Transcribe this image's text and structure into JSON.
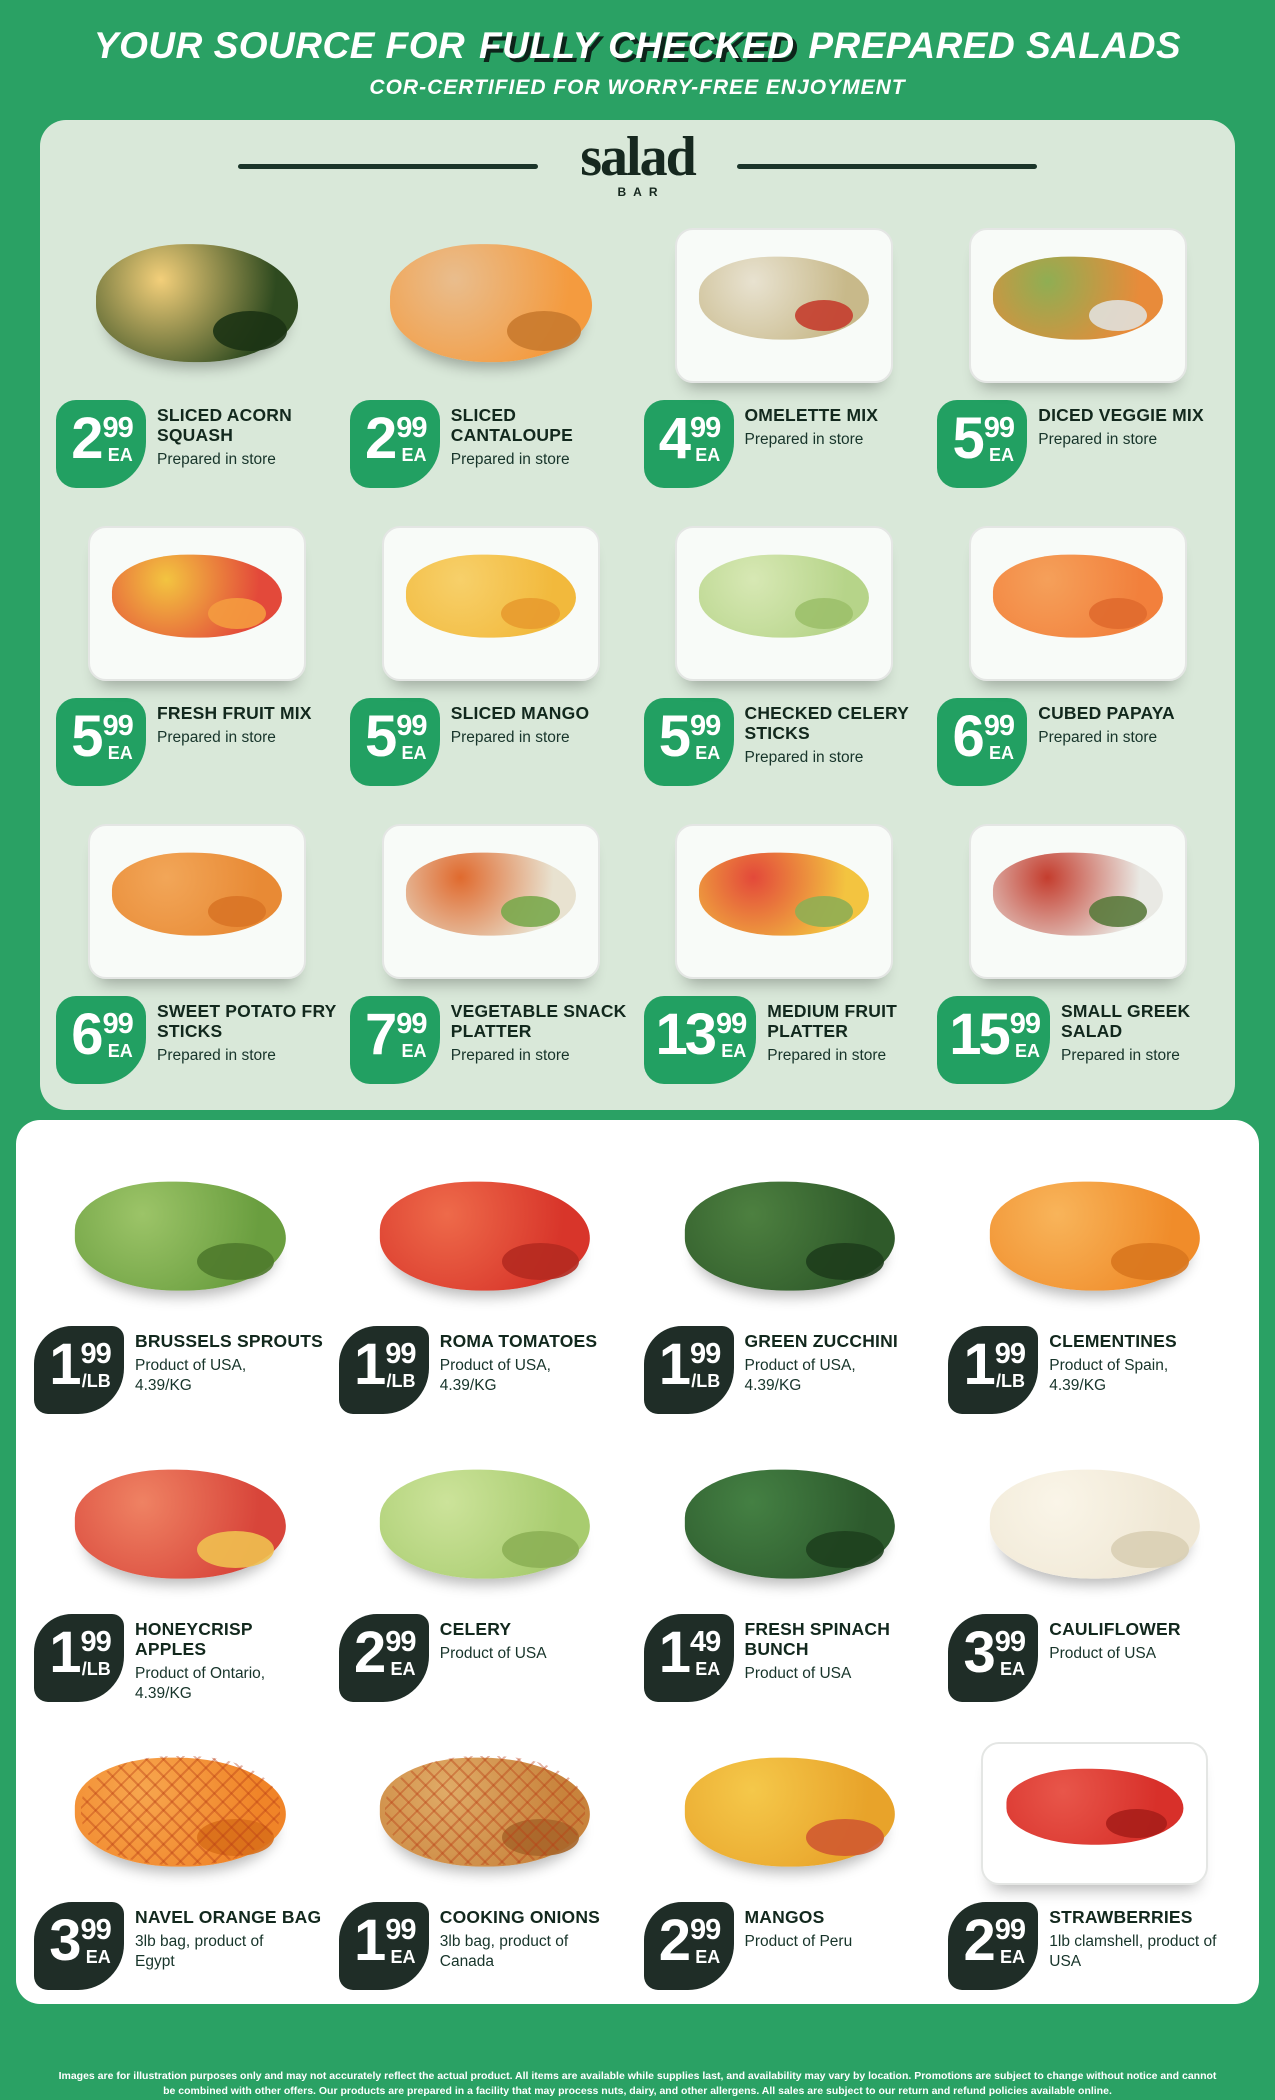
{
  "theme": {
    "background_green": "#2aa164",
    "panel_light_green": "#d9e8d9",
    "badge_green": "#22a062",
    "badge_dark": "#1f2d27",
    "text_dark": "#12281d",
    "text_white": "#ffffff"
  },
  "header": {
    "title_prefix": "YOUR SOURCE FOR ",
    "title_highlight": "FULLY CHECKED",
    "title_suffix": " PREPARED SALADS",
    "subtitle": "COR-CERTIFIED FOR WORRY-FREE ENJOYMENT"
  },
  "logo": {
    "name": "salad",
    "sub": "BAR"
  },
  "prepared_section": {
    "items": [
      {
        "name": "SLICED ACORN SQUASH",
        "sub": "Prepared in store",
        "price": {
          "dollars": "2",
          "cents": "99",
          "unit": "EA"
        },
        "container": "none",
        "colors": [
          "#2e4a1f",
          "#f3cf7a",
          "#1c3314"
        ]
      },
      {
        "name": "SLICED CANTALOUPE",
        "sub": "Prepared in store",
        "price": {
          "dollars": "2",
          "cents": "99",
          "unit": "EA"
        },
        "container": "none",
        "colors": [
          "#f49b3f",
          "#e9bd8d",
          "#c97a2e"
        ]
      },
      {
        "name": "OMELETTE MIX",
        "sub": "Prepared in store",
        "price": {
          "dollars": "4",
          "cents": "99",
          "unit": "EA"
        },
        "container": "tub",
        "colors": [
          "#c8b98a",
          "#e8e2d0",
          "#c43d2e"
        ]
      },
      {
        "name": "DICED VEGGIE MIX",
        "sub": "Prepared in store",
        "price": {
          "dollars": "5",
          "cents": "99",
          "unit": "EA"
        },
        "container": "tub",
        "colors": [
          "#e88b3a",
          "#8fae53",
          "#e0e0dc"
        ]
      },
      {
        "name": "FRESH FRUIT MIX",
        "sub": "Prepared in store",
        "price": {
          "dollars": "5",
          "cents": "99",
          "unit": "EA"
        },
        "container": "tub",
        "colors": [
          "#e3493a",
          "#f3c440",
          "#f49b3f"
        ]
      },
      {
        "name": "SLICED MANGO",
        "sub": "Prepared in store",
        "price": {
          "dollars": "5",
          "cents": "99",
          "unit": "EA"
        },
        "container": "tub",
        "colors": [
          "#f2b93c",
          "#f7d06a",
          "#e89b2f"
        ]
      },
      {
        "name": "CHECKED CELERY STICKS",
        "sub": "Prepared in store",
        "price": {
          "dollars": "5",
          "cents": "99",
          "unit": "EA"
        },
        "container": "tub",
        "colors": [
          "#b6d489",
          "#d7e8b4",
          "#9cc06a"
        ]
      },
      {
        "name": "CUBED PAPAYA",
        "sub": "Prepared in store",
        "price": {
          "dollars": "6",
          "cents": "99",
          "unit": "EA"
        },
        "container": "tub",
        "colors": [
          "#f2803c",
          "#f5a05a",
          "#e06a2e"
        ]
      },
      {
        "name": "SWEET POTATO FRY STICKS",
        "sub": "Prepared in store",
        "price": {
          "dollars": "6",
          "cents": "99",
          "unit": "EA"
        },
        "container": "tub",
        "colors": [
          "#e88a35",
          "#f2a658",
          "#d97426"
        ]
      },
      {
        "name": "VEGETABLE SNACK PLATTER",
        "sub": "Prepared in store",
        "price": {
          "dollars": "7",
          "cents": "99",
          "unit": "EA"
        },
        "container": "tub",
        "colors": [
          "#e8e2d0",
          "#e06a2e",
          "#7aa84c"
        ]
      },
      {
        "name": "MEDIUM FRUIT PLATTER",
        "sub": "Prepared in store",
        "price": {
          "dollars": "13",
          "cents": "99",
          "unit": "EA"
        },
        "container": "tub",
        "colors": [
          "#f3c440",
          "#e3493a",
          "#8fae53"
        ]
      },
      {
        "name": "SMALL GREEK SALAD",
        "sub": "Prepared in store",
        "price": {
          "dollars": "15",
          "cents": "99",
          "unit": "EA"
        },
        "container": "tub",
        "colors": [
          "#e9e9e4",
          "#c43d2e",
          "#5a7a3c"
        ]
      }
    ]
  },
  "produce_section": {
    "items": [
      {
        "name": "BRUSSELS SPROUTS",
        "sub": "Product of USA, 4.39/KG",
        "price": {
          "dollars": "1",
          "cents": "99",
          "unit": "/LB"
        },
        "container": "none",
        "colors": [
          "#6a9e3f",
          "#9cc468",
          "#4f7a2c"
        ]
      },
      {
        "name": "ROMA TOMATOES",
        "sub": "Product of USA, 4.39/KG",
        "price": {
          "dollars": "1",
          "cents": "99",
          "unit": "/LB"
        },
        "container": "none",
        "colors": [
          "#d8352a",
          "#ee6a4a",
          "#b52a20"
        ]
      },
      {
        "name": "GREEN ZUCCHINI",
        "sub": "Product of USA, 4.39/KG",
        "price": {
          "dollars": "1",
          "cents": "99",
          "unit": "/LB"
        },
        "container": "none",
        "colors": [
          "#2f5a2a",
          "#4d8040",
          "#1e3d1c"
        ]
      },
      {
        "name": "CLEMENTINES",
        "sub": "Product of Spain, 4.39/KG",
        "price": {
          "dollars": "1",
          "cents": "99",
          "unit": "/LB"
        },
        "container": "none",
        "colors": [
          "#f08c2a",
          "#f8b45a",
          "#d9771e"
        ]
      },
      {
        "name": "HONEYCRISP APPLES",
        "sub": "Product of Ontario, 4.39/KG",
        "price": {
          "dollars": "1",
          "cents": "99",
          "unit": "/LB"
        },
        "container": "none",
        "colors": [
          "#d8453a",
          "#ef8263",
          "#f0c050"
        ]
      },
      {
        "name": "CELERY",
        "sub": "Product of USA",
        "price": {
          "dollars": "2",
          "cents": "99",
          "unit": "EA"
        },
        "container": "none",
        "colors": [
          "#a8cc6f",
          "#cce39a",
          "#8cb055"
        ]
      },
      {
        "name": "FRESH SPINACH BUNCH",
        "sub": "Product of USA",
        "price": {
          "dollars": "1",
          "cents": "49",
          "unit": "EA"
        },
        "container": "none",
        "colors": [
          "#2d5a2d",
          "#448043",
          "#1e401e"
        ]
      },
      {
        "name": "CAULIFLOWER",
        "sub": "Product of USA",
        "price": {
          "dollars": "3",
          "cents": "99",
          "unit": "EA"
        },
        "container": "none",
        "colors": [
          "#efe7d4",
          "#faf5e8",
          "#d9cfb4"
        ]
      },
      {
        "name": "NAVEL ORANGE BAG",
        "sub": "3lb bag, product of Egypt",
        "price": {
          "dollars": "3",
          "cents": "99",
          "unit": "EA"
        },
        "container": "net",
        "colors": [
          "#f08428",
          "#f7a64e",
          "#d96f1a"
        ]
      },
      {
        "name": "COOKING ONIONS",
        "sub": "3lb bag, product of Canada",
        "price": {
          "dollars": "1",
          "cents": "99",
          "unit": "EA"
        },
        "container": "net",
        "colors": [
          "#c8833c",
          "#e0ab67",
          "#a8662a"
        ]
      },
      {
        "name": "MANGOS",
        "sub": "Product of Peru",
        "price": {
          "dollars": "2",
          "cents": "99",
          "unit": "EA"
        },
        "container": "none",
        "colors": [
          "#e8a32a",
          "#f5c84a",
          "#d05a30"
        ]
      },
      {
        "name": "STRAWBERRIES",
        "sub": "1lb clamshell, product of USA",
        "price": {
          "dollars": "2",
          "cents": "99",
          "unit": "EA"
        },
        "container": "tub",
        "colors": [
          "#d8302a",
          "#e8564a",
          "#a81e1a"
        ]
      }
    ]
  },
  "footer": {
    "disclaimer": "Images are for illustration purposes only and may not accurately reflect the actual product. All items are available while supplies last, and availability may vary by location. Promotions are subject to change without notice and cannot be combined with other offers. Our products are prepared in a facility that may process nuts, dairy, and other allergens. All sales are subject to our return and refund policies available online."
  }
}
